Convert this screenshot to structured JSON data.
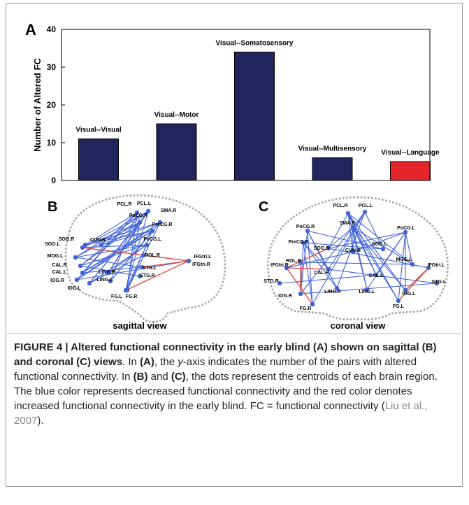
{
  "chart_data": {
    "type": "bar",
    "panel_label": "A",
    "y_label": "Number of Altered FC",
    "categories": [
      "Visual--Visual",
      "Visual--Motor",
      "Visual--Somatosensory",
      "Visual--Multisensory",
      "Visual--Language"
    ],
    "values": [
      11,
      15,
      34,
      6,
      5
    ],
    "colors": [
      "#22245e",
      "#22245e",
      "#22245e",
      "#22245e",
      "#e3262b"
    ],
    "ylim": [
      0,
      40
    ],
    "yticks": [
      0,
      10,
      20,
      30,
      40
    ]
  },
  "panel_b": {
    "label": "B",
    "view": "sagittal view",
    "nodes": [
      "PCL.R",
      "PCL.L",
      "SMA.R",
      "PoCG.R",
      "PreCG.R",
      "PeCG.L",
      "SOG.R",
      "SOG.L",
      "CUN.R",
      "MOG.L",
      "ROL.R",
      "IFGtri.L",
      "IFGtri.R",
      "CAL.R",
      "CAL.L",
      "STG.L",
      "IOG.R",
      "LING.R",
      "STG.R",
      "IOG.L",
      "LING.L",
      "FG.L",
      "FG.R"
    ]
  },
  "panel_c": {
    "label": "C",
    "view": "coronal view",
    "nodes": [
      "PCL.R",
      "PCL.L",
      "SMA.R",
      "PoCG.R",
      "PoCG.L",
      "PreCG.R",
      "SOG.R",
      "SOG.L",
      "CUN.R",
      "ROL.R",
      "MOG.L",
      "IFGtri.R",
      "IFGtri.L",
      "CAL.R",
      "CAL.L",
      "STG.R",
      "STG.L",
      "LING.R",
      "LING.L",
      "IOG.R",
      "IOG.L",
      "FG.R",
      "FG.L"
    ]
  },
  "caption": [
    {
      "text": "FIGURE 4 | Altered functional connectivity in the early blind (A) shown on sagittal (B) and coronal (C) views",
      "style": "bold"
    },
    {
      "text": ". In ",
      "style": "normal"
    },
    {
      "text": "(A)",
      "style": "bold"
    },
    {
      "text": ", the ",
      "style": "normal"
    },
    {
      "text": "y",
      "style": "italic"
    },
    {
      "text": "-axis indicates the number of the pairs with altered functional connectivity. In ",
      "style": "normal"
    },
    {
      "text": "(B)",
      "style": "bold"
    },
    {
      "text": " and ",
      "style": "normal"
    },
    {
      "text": "(C)",
      "style": "bold"
    },
    {
      "text": ", the dots represent the centroids of each brain region. The blue color represents decreased functional connectivity and the red color denotes increased functional connectivity in the early blind. FC = functional connectivity (",
      "style": "normal"
    },
    {
      "text": "Liu et al., 2007",
      "style": "link"
    },
    {
      "text": ").",
      "style": "normal"
    }
  ]
}
